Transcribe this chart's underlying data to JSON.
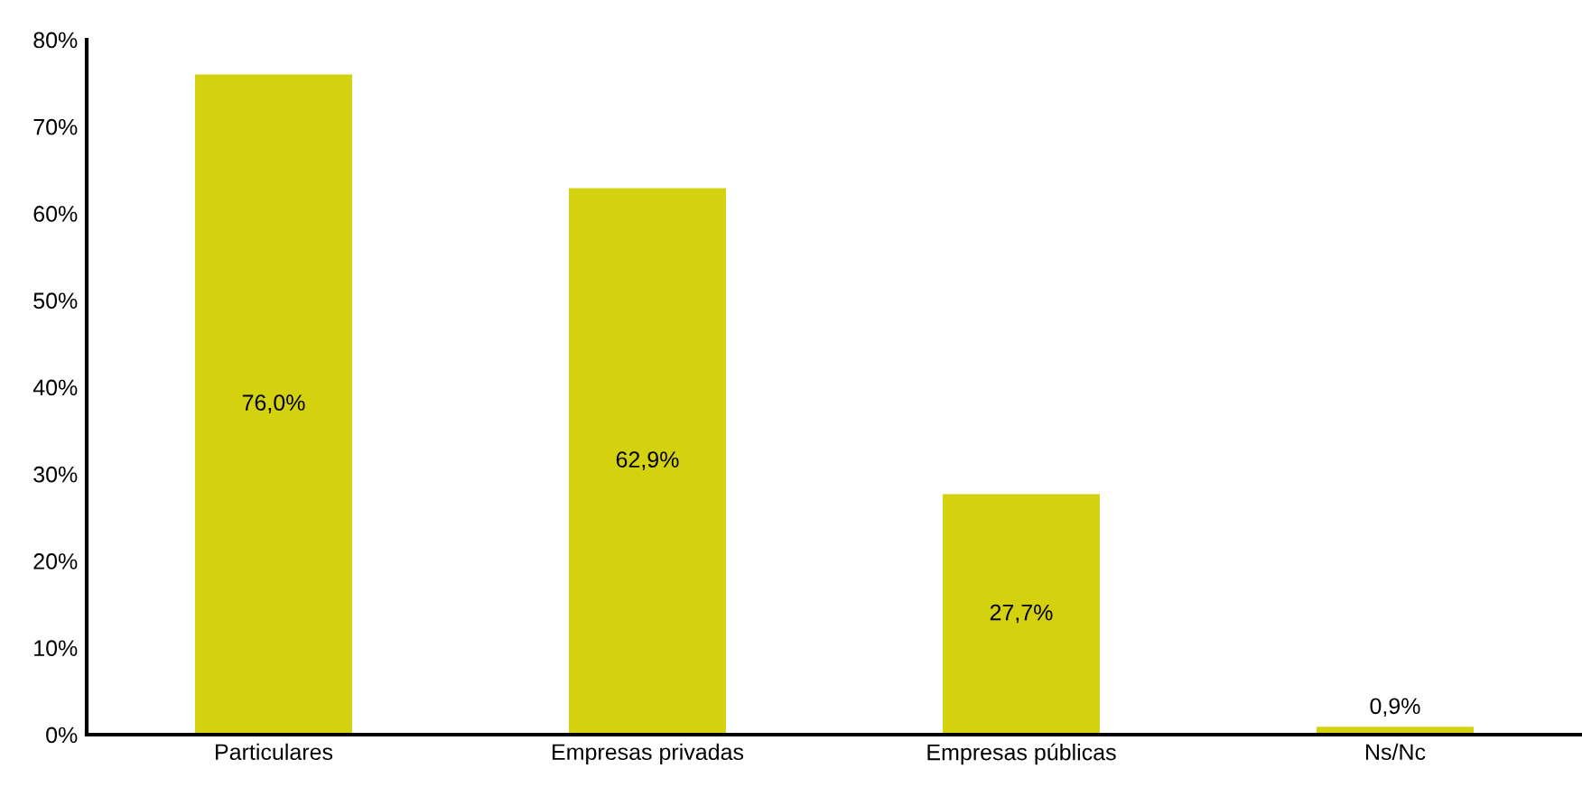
{
  "chart_data": {
    "type": "bar",
    "categories": [
      "Particulares",
      "Empresas privadas",
      "Empresas públicas",
      "Ns/Nc"
    ],
    "values": [
      76.0,
      62.9,
      27.7,
      0.9
    ],
    "value_labels": [
      "76,0%",
      "62,9%",
      "27,7%",
      "0,9%"
    ],
    "color": "#d4d10f",
    "ylim": [
      0,
      80
    ],
    "yticks": [
      {
        "value": 0,
        "label": "0%"
      },
      {
        "value": 10,
        "label": "10%"
      },
      {
        "value": 20,
        "label": "20%"
      },
      {
        "value": 30,
        "label": "30%"
      },
      {
        "value": 40,
        "label": "40%"
      },
      {
        "value": 50,
        "label": "50%"
      },
      {
        "value": 60,
        "label": "60%"
      },
      {
        "value": 70,
        "label": "70%"
      },
      {
        "value": 80,
        "label": "80%"
      }
    ],
    "grid": false
  }
}
